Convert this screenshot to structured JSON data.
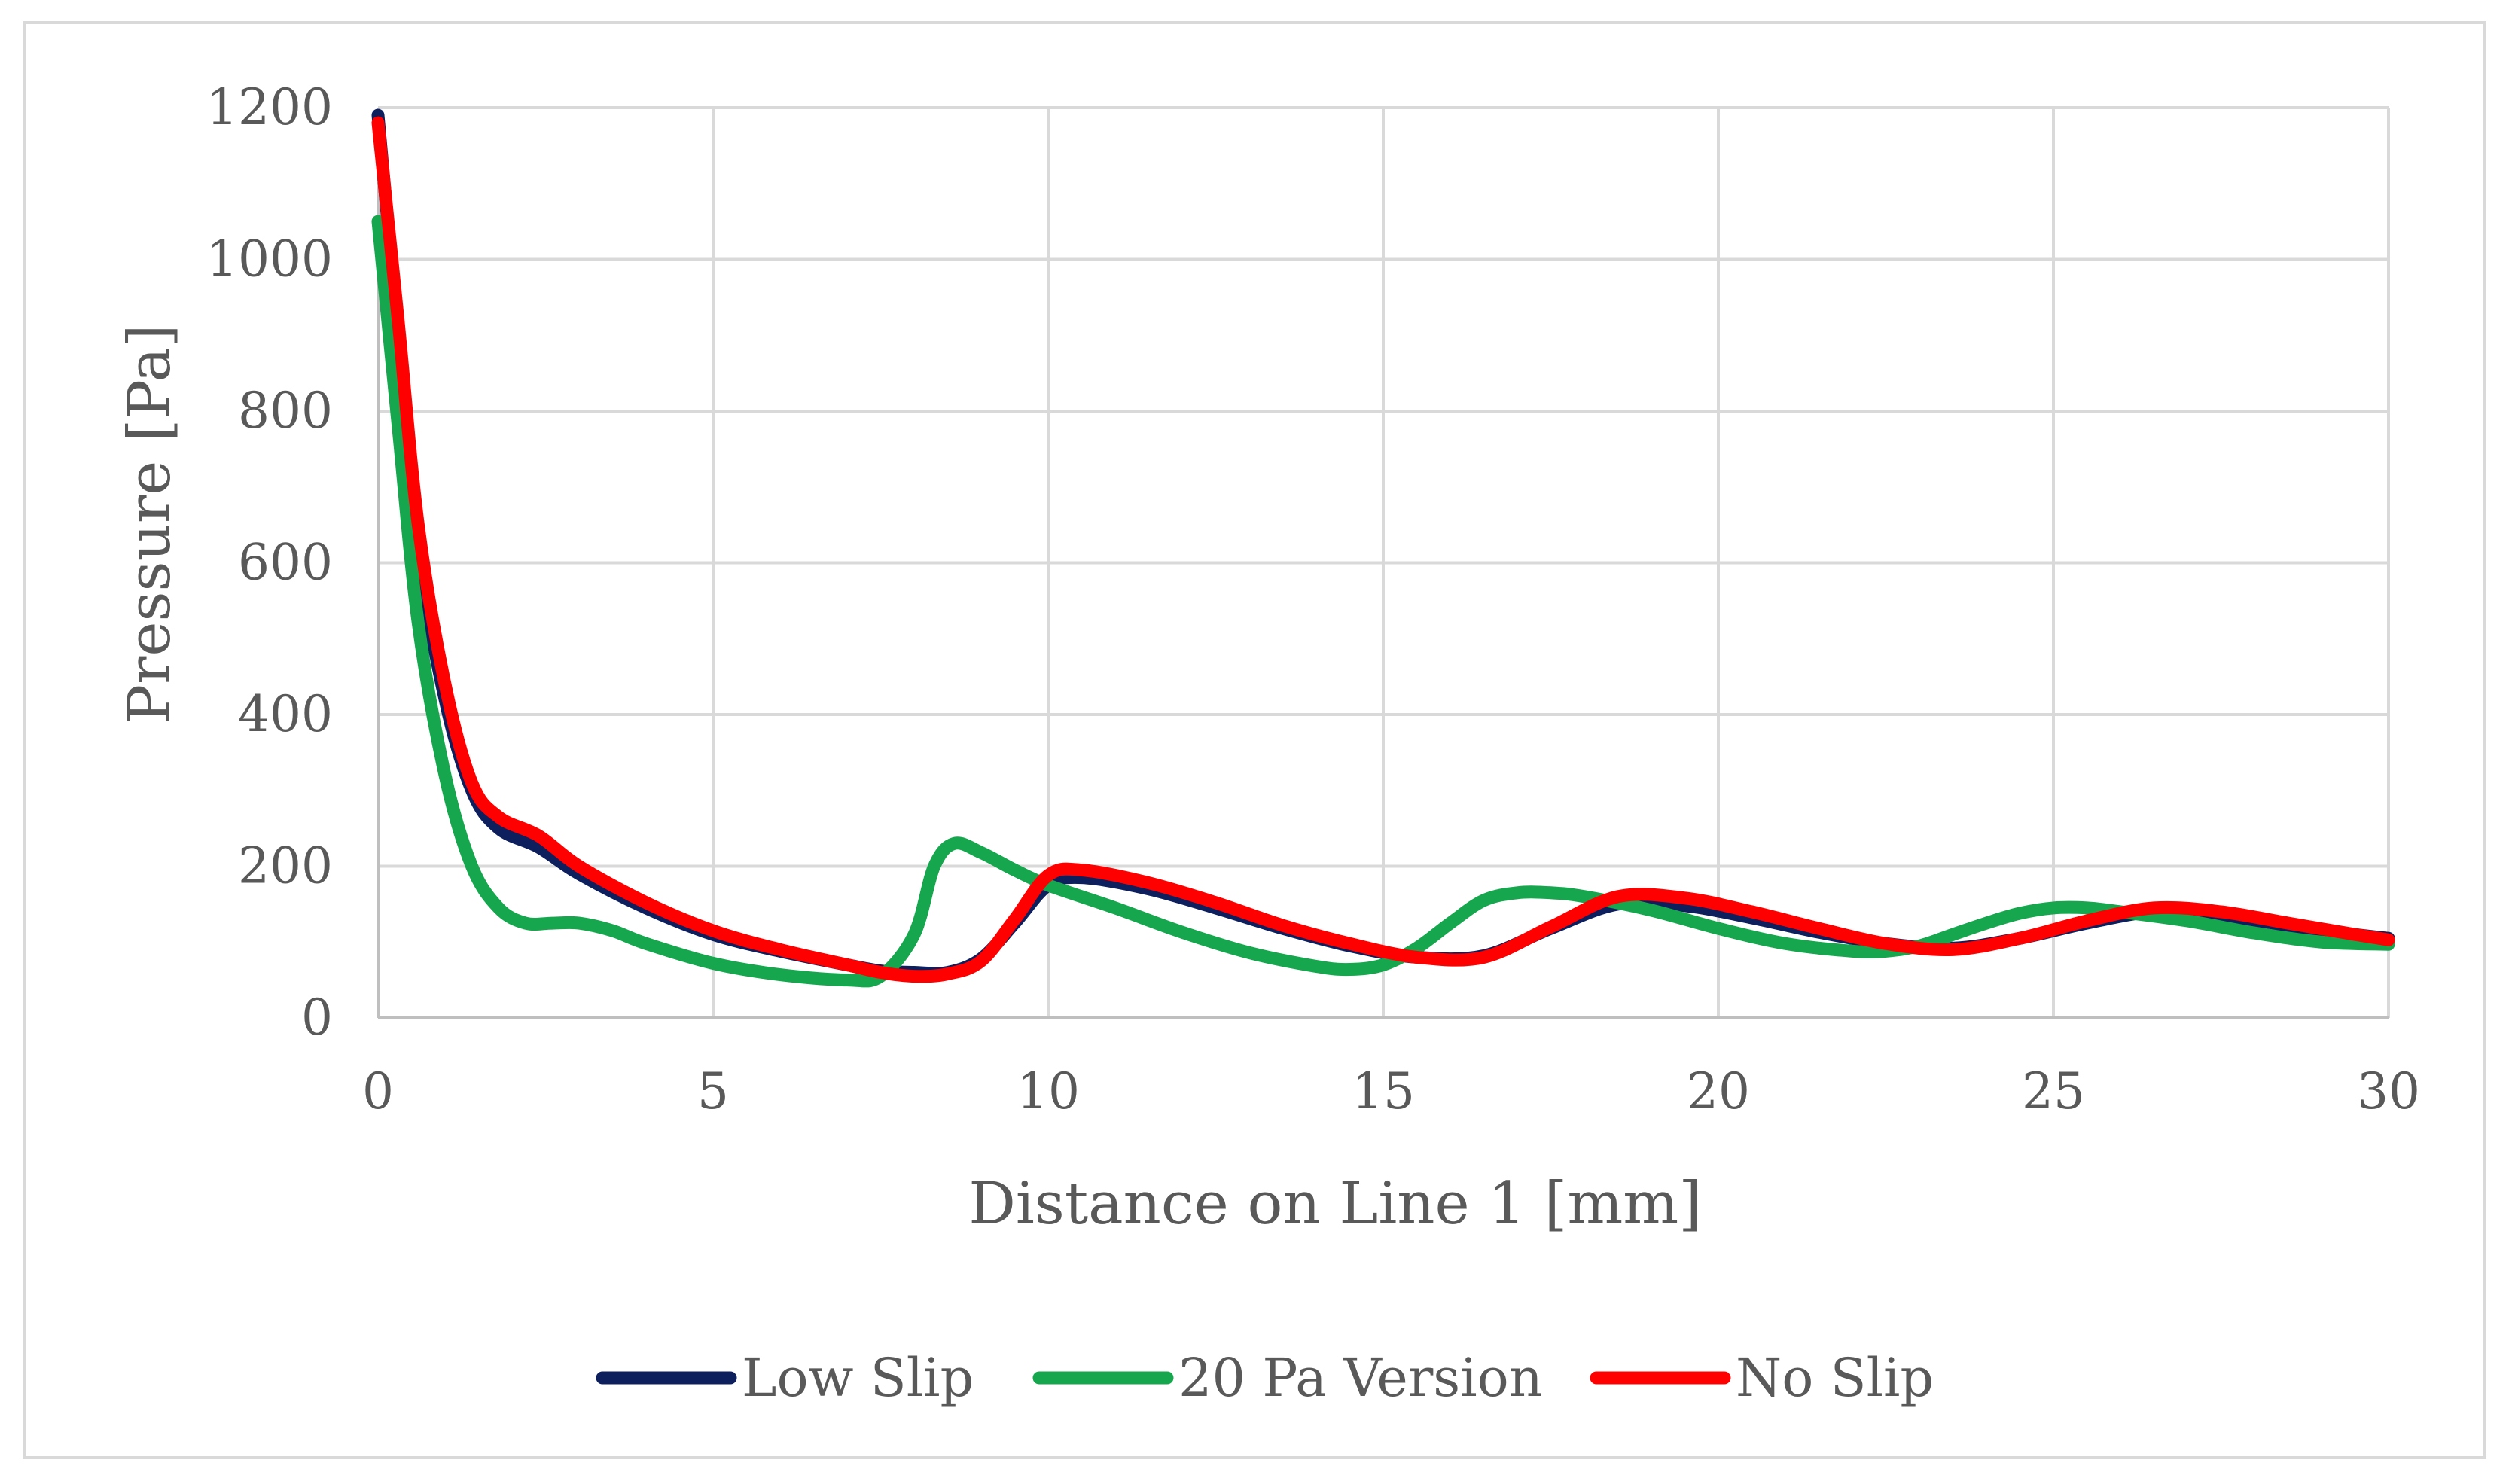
{
  "chart_data": {
    "type": "line",
    "title": "",
    "xlabel": "Distance on Line 1 [mm]",
    "ylabel": "Pressure [Pa]",
    "xlim": [
      0,
      30
    ],
    "ylim": [
      0,
      1200
    ],
    "xticks": [
      "0",
      "5",
      "10",
      "15",
      "20",
      "25",
      "30"
    ],
    "yticks": [
      "0",
      "200",
      "400",
      "600",
      "800",
      "1000",
      "1200"
    ],
    "grid": true,
    "legend_position": "bottom",
    "series": [
      {
        "name": "Low Slip",
        "color": "#0d1f5c",
        "x": [
          0,
          0.3,
          0.6,
          1.0,
          1.4,
          1.8,
          2.4,
          3.0,
          4.0,
          5.0,
          6.0,
          7.0,
          7.5,
          8.0,
          8.5,
          9.0,
          9.5,
          10.0,
          10.5,
          11.5,
          12.5,
          13.5,
          14.5,
          15.5,
          16.5,
          17.5,
          18.5,
          19.5,
          20.5,
          21.5,
          22.5,
          23.5,
          24.5,
          25.5,
          26.5,
          27.5,
          28.5,
          29.5,
          30
        ],
        "y": [
          1190,
          900,
          620,
          420,
          300,
          250,
          225,
          190,
          145,
          110,
          88,
          70,
          62,
          60,
          60,
          78,
          125,
          175,
          185,
          170,
          145,
          118,
          95,
          80,
          82,
          118,
          150,
          148,
          132,
          113,
          98,
          92,
          105,
          125,
          140,
          135,
          122,
          110,
          105
        ]
      },
      {
        "name": "20 Pa Version",
        "color": "#16a64e",
        "x": [
          0,
          0.3,
          0.6,
          1.0,
          1.4,
          1.8,
          2.2,
          2.6,
          3.0,
          3.5,
          4.0,
          5.0,
          6.0,
          7.0,
          7.5,
          8.0,
          8.3,
          8.6,
          9.0,
          9.5,
          10.0,
          11.0,
          12.0,
          13.0,
          14.0,
          14.5,
          15.0,
          15.5,
          16.0,
          16.5,
          17.0,
          17.5,
          18.0,
          19.0,
          20.0,
          21.0,
          22.0,
          22.5,
          23.0,
          23.5,
          24.0,
          24.5,
          25.0,
          25.5,
          26.0,
          27.0,
          28.0,
          29.0,
          30
        ],
        "y": [
          1050,
          780,
          520,
          320,
          200,
          145,
          125,
          125,
          125,
          115,
          98,
          72,
          57,
          50,
          55,
          110,
          200,
          230,
          218,
          195,
          175,
          145,
          113,
          86,
          68,
          64,
          70,
          92,
          125,
          155,
          165,
          165,
          160,
          142,
          118,
          98,
          88,
          88,
          95,
          110,
          125,
          138,
          145,
          145,
          140,
          128,
          112,
          100,
          97
        ]
      },
      {
        "name": "No Slip",
        "color": "#ff0000",
        "x": [
          0,
          0.3,
          0.6,
          1.0,
          1.4,
          1.8,
          2.4,
          3.0,
          4.0,
          5.0,
          6.0,
          7.0,
          7.5,
          8.0,
          8.5,
          9.0,
          9.5,
          10.0,
          10.5,
          11.5,
          12.5,
          13.5,
          14.5,
          15.5,
          16.5,
          17.5,
          18.5,
          19.5,
          20.5,
          21.5,
          22.5,
          23.5,
          24.5,
          25.5,
          26.5,
          27.5,
          28.5,
          29.5,
          30
        ],
        "y": [
          1180,
          920,
          650,
          440,
          310,
          265,
          240,
          200,
          152,
          115,
          90,
          70,
          60,
          55,
          58,
          75,
          130,
          188,
          195,
          178,
          152,
          122,
          98,
          80,
          80,
          120,
          160,
          158,
          140,
          118,
          98,
          90,
          105,
          128,
          145,
          140,
          125,
          110,
          103
        ]
      }
    ]
  }
}
